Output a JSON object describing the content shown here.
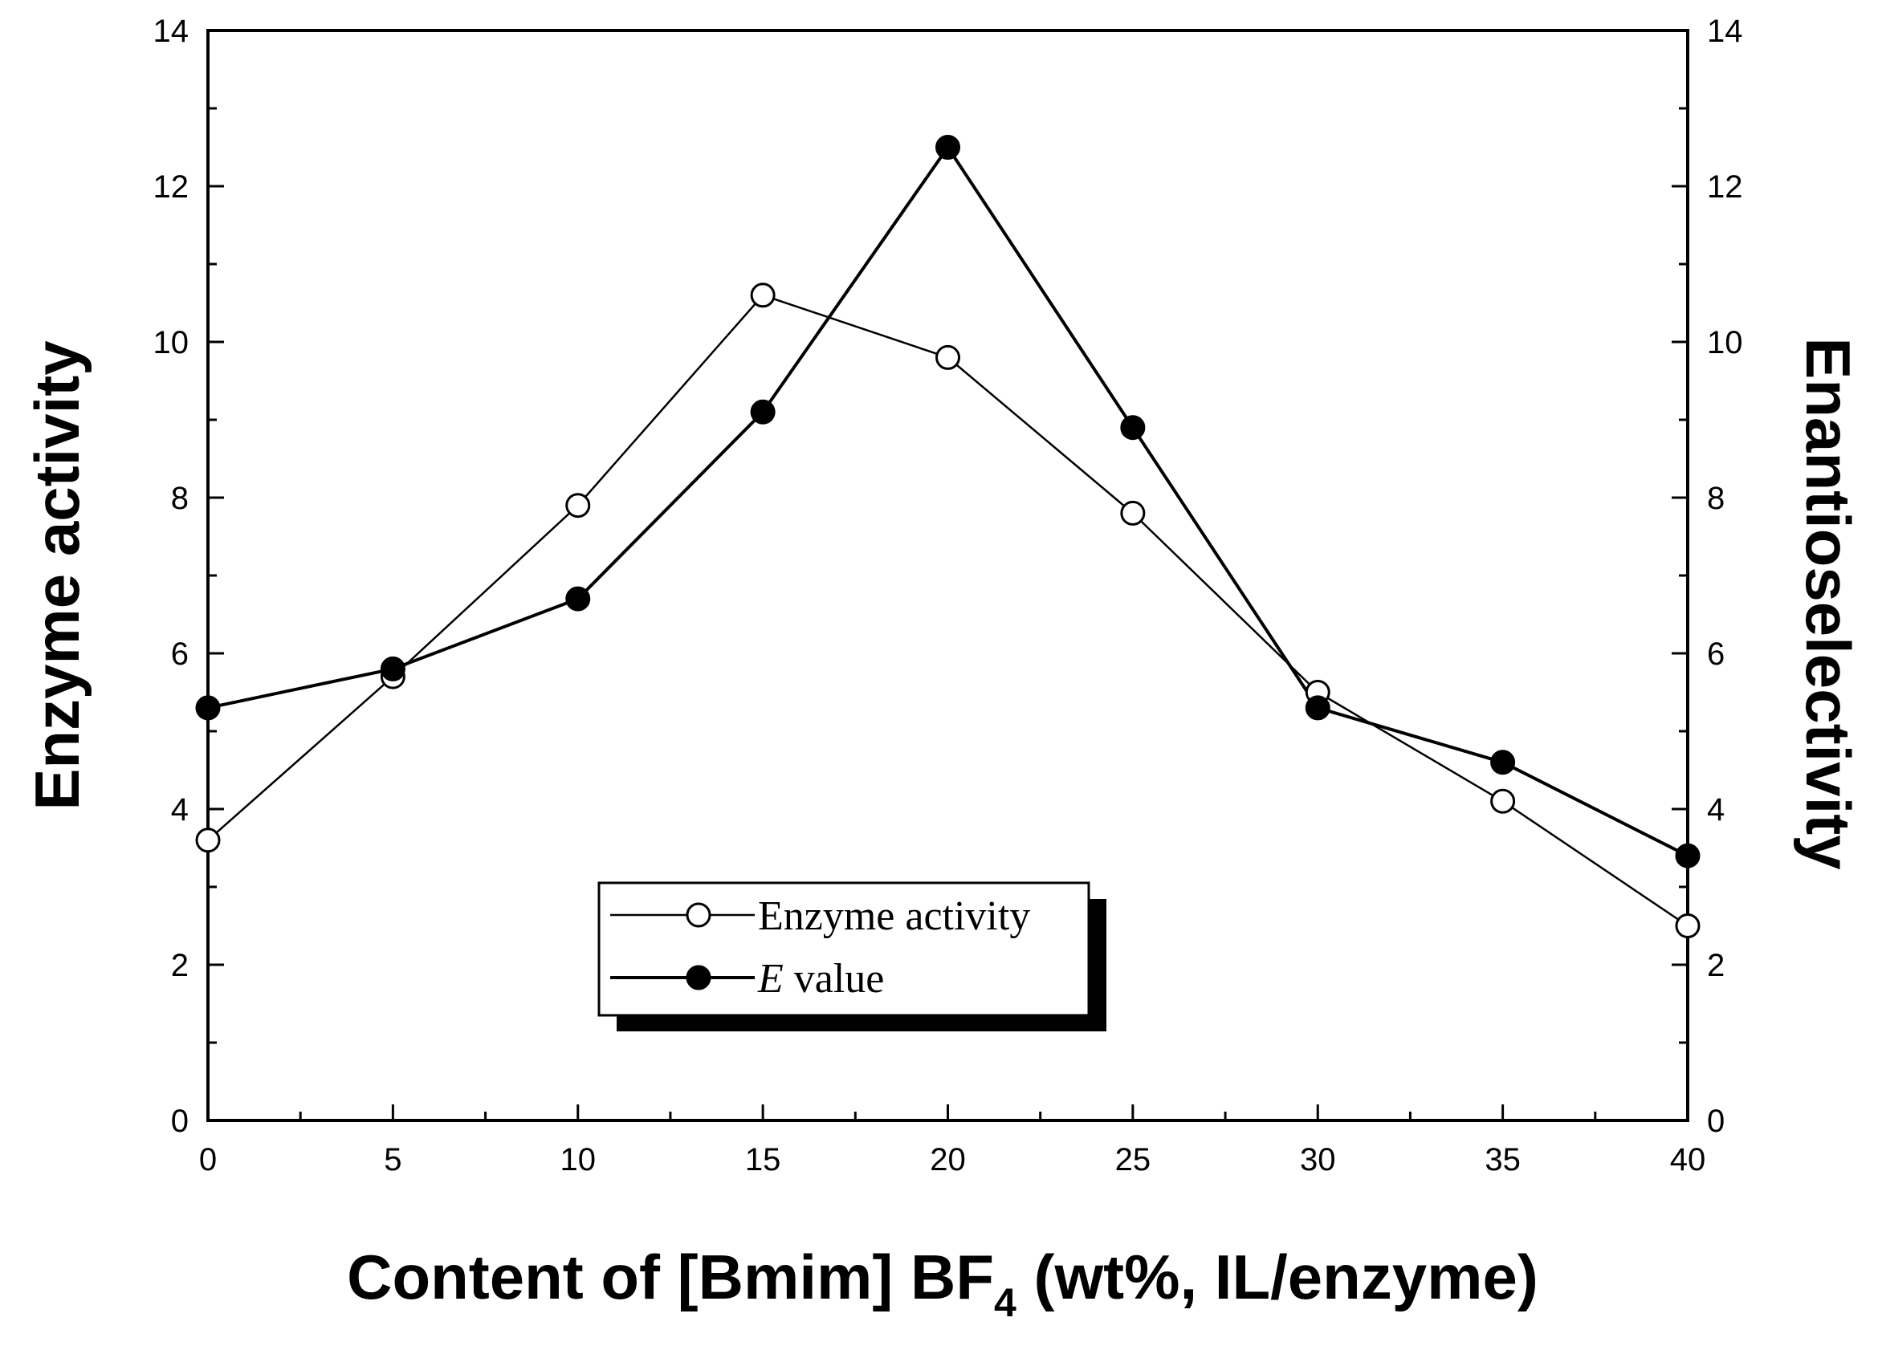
{
  "chart_data": {
    "type": "line",
    "x": [
      0,
      5,
      10,
      15,
      20,
      25,
      30,
      35,
      40
    ],
    "xlabel": "Content of [Bmim] BF",
    "xlabel_sub": "4",
    "xlabel_tail": " (wt%, IL/enzyme)",
    "ylabel_left": "Enzyme activity",
    "ylabel_right": "Enantioselectivity",
    "xlim": [
      0,
      40
    ],
    "ylim_left": [
      0,
      14
    ],
    "ylim_right": [
      0,
      14
    ],
    "xticks": [
      0,
      5,
      10,
      15,
      20,
      25,
      30,
      35,
      40
    ],
    "yticks": [
      0,
      2,
      4,
      6,
      8,
      10,
      12,
      14
    ],
    "grid": false,
    "legend_position": "lower-center",
    "series": [
      {
        "name": "Enzyme activity",
        "axis": "left",
        "marker": "open-circle",
        "values": [
          3.6,
          5.7,
          7.9,
          10.6,
          9.8,
          7.8,
          5.5,
          4.1,
          2.5
        ]
      },
      {
        "name_italic": "E",
        "name_rest": " value",
        "axis": "right",
        "marker": "filled-circle",
        "values": [
          5.3,
          5.8,
          6.7,
          9.1,
          12.5,
          8.9,
          5.3,
          4.6,
          3.4
        ]
      }
    ]
  }
}
